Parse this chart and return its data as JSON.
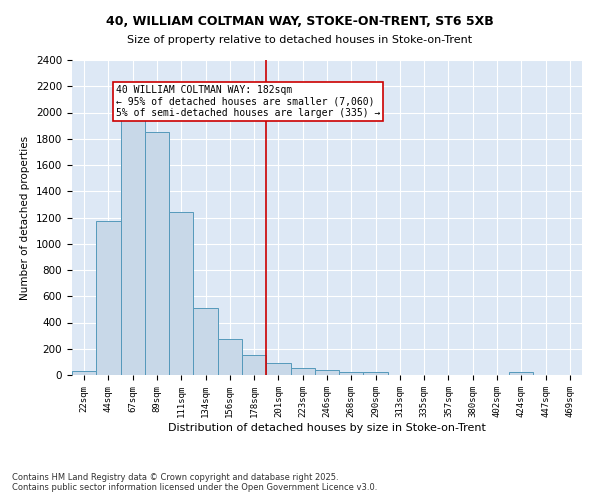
{
  "title1": "40, WILLIAM COLTMAN WAY, STOKE-ON-TRENT, ST6 5XB",
  "title2": "Size of property relative to detached houses in Stoke-on-Trent",
  "xlabel": "Distribution of detached houses by size in Stoke-on-Trent",
  "ylabel": "Number of detached properties",
  "categories": [
    "22sqm",
    "44sqm",
    "67sqm",
    "89sqm",
    "111sqm",
    "134sqm",
    "156sqm",
    "178sqm",
    "201sqm",
    "223sqm",
    "246sqm",
    "268sqm",
    "290sqm",
    "313sqm",
    "335sqm",
    "357sqm",
    "380sqm",
    "402sqm",
    "424sqm",
    "447sqm",
    "469sqm"
  ],
  "values": [
    30,
    1175,
    1975,
    1855,
    1240,
    510,
    275,
    155,
    95,
    50,
    40,
    25,
    20,
    0,
    0,
    0,
    0,
    0,
    20,
    0,
    0
  ],
  "bar_color": "#c8d8e8",
  "bar_edge_color": "#5599bb",
  "vline_x": 7.5,
  "vline_color": "#cc0000",
  "annotation_text": "40 WILLIAM COLTMAN WAY: 182sqm\n← 95% of detached houses are smaller (7,060)\n5% of semi-detached houses are larger (335) →",
  "annotation_box_color": "#ffffff",
  "annotation_box_edge_color": "#cc0000",
  "ylim": [
    0,
    2400
  ],
  "yticks": [
    0,
    200,
    400,
    600,
    800,
    1000,
    1200,
    1400,
    1600,
    1800,
    2000,
    2200,
    2400
  ],
  "bg_color": "#dde8f5",
  "footnote1": "Contains HM Land Registry data © Crown copyright and database right 2025.",
  "footnote2": "Contains public sector information licensed under the Open Government Licence v3.0."
}
